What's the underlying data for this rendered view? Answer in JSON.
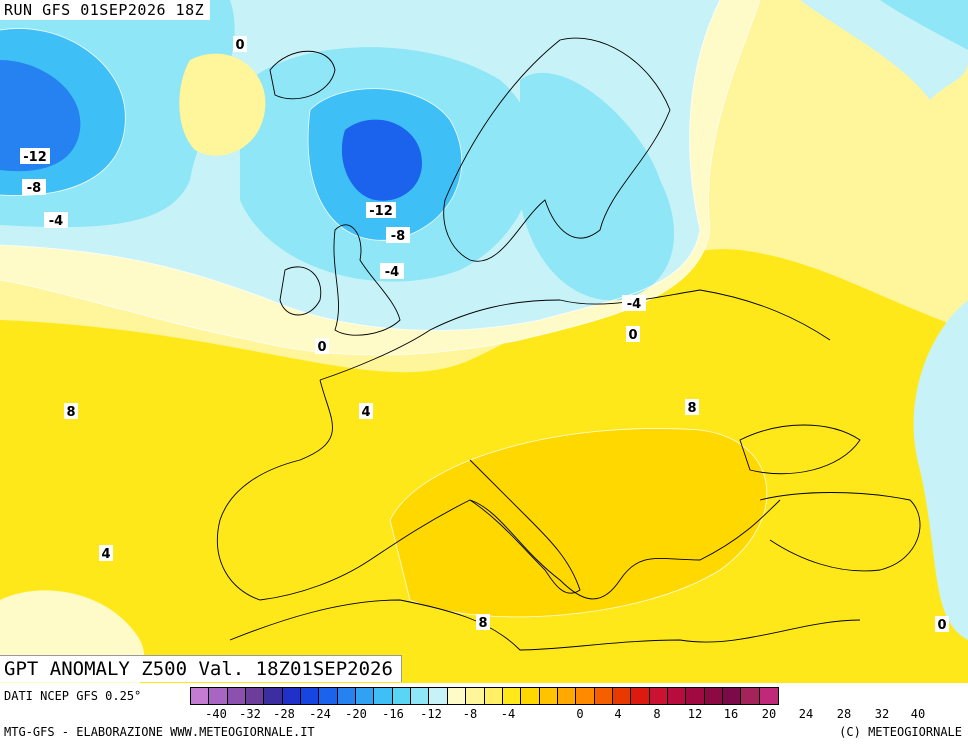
{
  "run_label": "RUN GFS 01SEP2026 18Z",
  "title": "GPT ANOMALY Z500 Val. 18Z01SEP2026",
  "source": "DATI NCEP GFS 0.25°",
  "credit_left": "MTG-GFS - ELABORAZIONE WWW.METEOGIORNALE.IT",
  "credit_right": "(C) METEOGIORNALE",
  "scale_colors": [
    "#c47bd2",
    "#a865c2",
    "#8c50ae",
    "#6c3d9a",
    "#3a2ea0",
    "#1f31c8",
    "#1546e2",
    "#1b63ec",
    "#2582f0",
    "#2fa2f4",
    "#3ec0f6",
    "#5ad6f5",
    "#8ee6f6",
    "#c7f2f8",
    "#fffbc8",
    "#fff59a",
    "#fff066",
    "#ffe81a",
    "#ffd800",
    "#ffc400",
    "#ffa800",
    "#ff8a00",
    "#f55f00",
    "#e83a00",
    "#dc1a10",
    "#cc1232",
    "#b80c3e",
    "#a00a40",
    "#8c0a44",
    "#7a0a48",
    "#a4235a",
    "#c0287a"
  ],
  "scale_ticks": [
    "-40",
    "-32",
    "-28",
    "-24",
    "-20",
    "-16",
    "-12",
    "-8",
    "-4",
    "0",
    "4",
    "8",
    "12",
    "16",
    "20",
    "24",
    "28",
    "32",
    "40"
  ],
  "contour_labels": [
    "0",
    "-12",
    "-8",
    "-4",
    "-12",
    "-8",
    "-4",
    "-4",
    "0",
    "0",
    "8",
    "4",
    "8",
    "4",
    "8",
    "0"
  ],
  "colors": {
    "sea_yellow": "#ffe81a",
    "light_yellow": "#fff59a",
    "pale_yellow": "#fffbc8",
    "light_cyan": "#c7f2f8",
    "cyan": "#8ee6f6",
    "mid_blue": "#3ec0f6",
    "blue": "#2582f0",
    "deep_blue": "#1b63ec",
    "gold": "#ffd800",
    "border": "#000000"
  }
}
